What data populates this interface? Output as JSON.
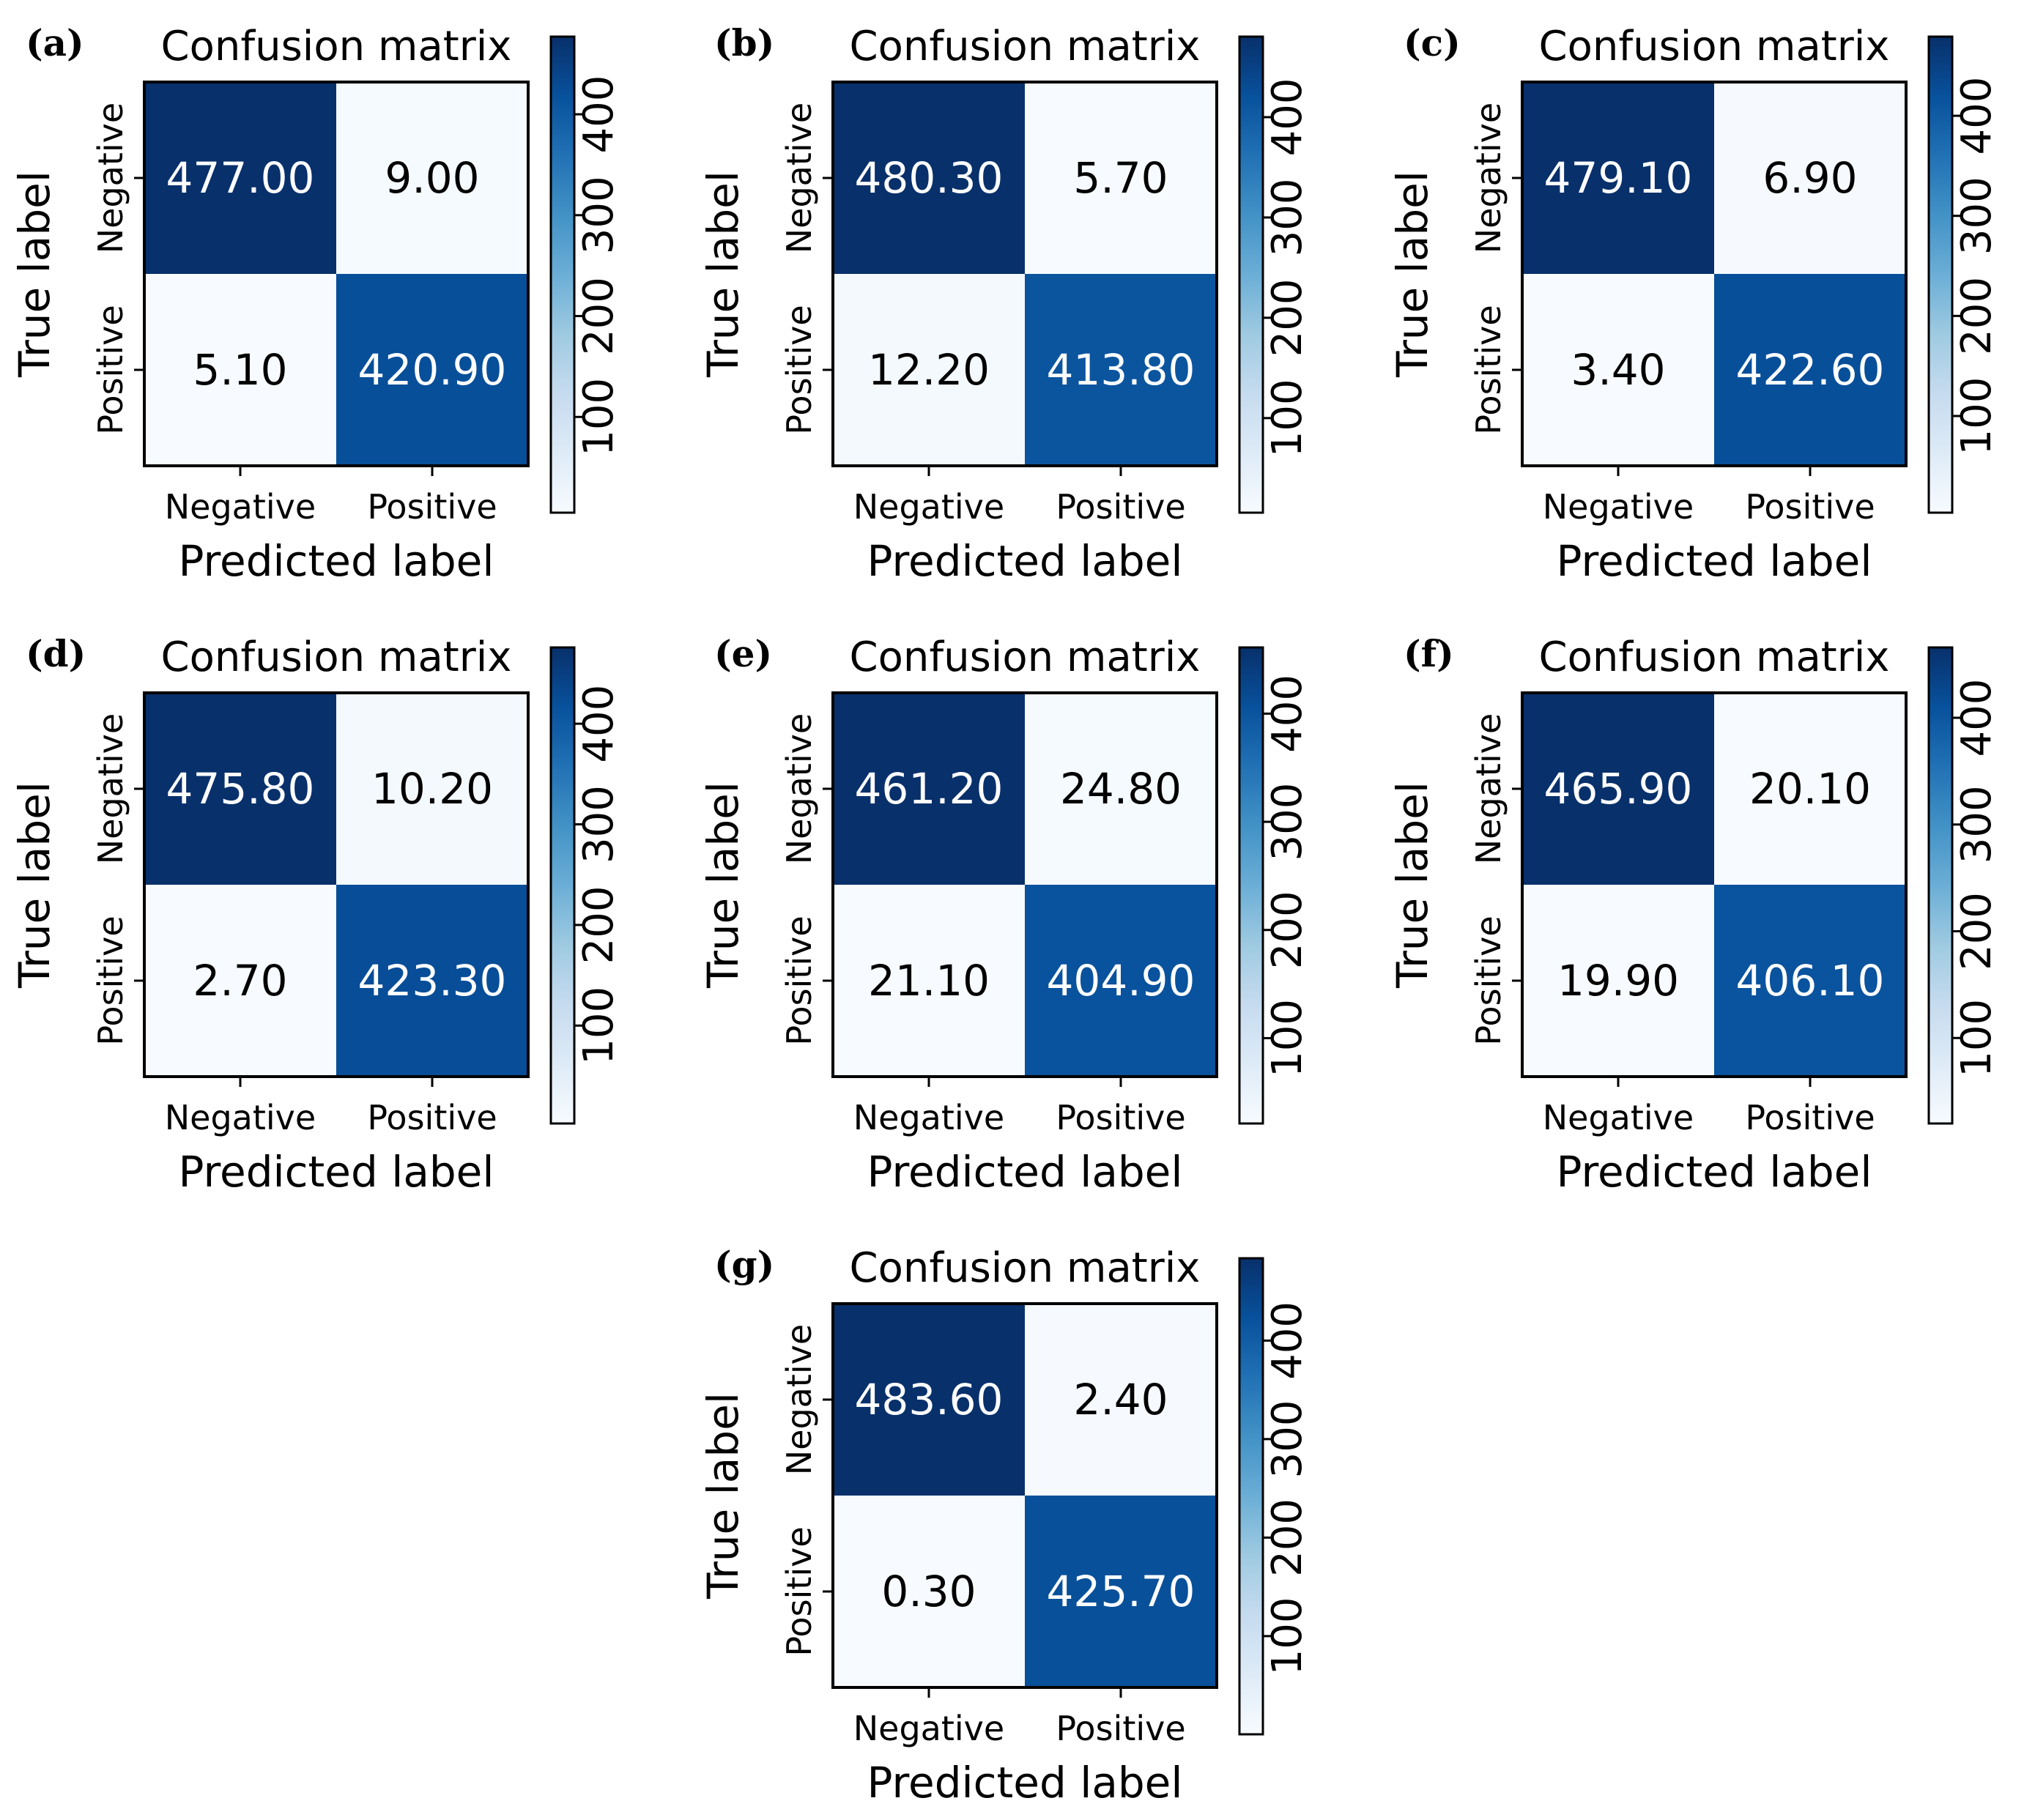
{
  "chart_data": [
    {
      "type": "heatmap",
      "panel_label": "(a)",
      "title": "Confusion matrix",
      "xlabel": "Predicted label",
      "ylabel": "True label",
      "x_categories": [
        "Negative",
        "Positive"
      ],
      "y_categories": [
        "Negative",
        "Positive"
      ],
      "values": [
        [
          477.0,
          9.0
        ],
        [
          5.1,
          420.9
        ]
      ],
      "value_labels": [
        [
          "477.00",
          "9.00"
        ],
        [
          "5.10",
          "420.90"
        ]
      ],
      "colorbar": {
        "range": [
          5.1,
          477.0
        ],
        "ticks": [
          100,
          200,
          300,
          400
        ],
        "tick_labels": [
          "100",
          "200",
          "300",
          "400"
        ],
        "colormap": "Blues"
      }
    },
    {
      "type": "heatmap",
      "panel_label": "(b)",
      "title": "Confusion matrix",
      "xlabel": "Predicted label",
      "ylabel": "True label",
      "x_categories": [
        "Negative",
        "Positive"
      ],
      "y_categories": [
        "Negative",
        "Positive"
      ],
      "values": [
        [
          480.3,
          5.7
        ],
        [
          12.2,
          413.8
        ]
      ],
      "value_labels": [
        [
          "480.30",
          "5.70"
        ],
        [
          "12.20",
          "413.80"
        ]
      ],
      "colorbar": {
        "range": [
          5.7,
          480.3
        ],
        "ticks": [
          100,
          200,
          300,
          400
        ],
        "tick_labels": [
          "100",
          "200",
          "300",
          "400"
        ],
        "colormap": "Blues"
      }
    },
    {
      "type": "heatmap",
      "panel_label": "(c)",
      "title": "Confusion matrix",
      "xlabel": "Predicted label",
      "ylabel": "True label",
      "x_categories": [
        "Negative",
        "Positive"
      ],
      "y_categories": [
        "Negative",
        "Positive"
      ],
      "values": [
        [
          479.1,
          6.9
        ],
        [
          3.4,
          422.6
        ]
      ],
      "value_labels": [
        [
          "479.10",
          "6.90"
        ],
        [
          "3.40",
          "422.60"
        ]
      ],
      "colorbar": {
        "range": [
          3.4,
          479.1
        ],
        "ticks": [
          100,
          200,
          300,
          400
        ],
        "tick_labels": [
          "100",
          "200",
          "300",
          "400"
        ],
        "colormap": "Blues"
      }
    },
    {
      "type": "heatmap",
      "panel_label": "(d)",
      "title": "Confusion matrix",
      "xlabel": "Predicted label",
      "ylabel": "True label",
      "x_categories": [
        "Negative",
        "Positive"
      ],
      "y_categories": [
        "Negative",
        "Positive"
      ],
      "values": [
        [
          475.8,
          10.2
        ],
        [
          2.7,
          423.3
        ]
      ],
      "value_labels": [
        [
          "475.80",
          "10.20"
        ],
        [
          "2.70",
          "423.30"
        ]
      ],
      "colorbar": {
        "range": [
          2.7,
          475.8
        ],
        "ticks": [
          100,
          200,
          300,
          400
        ],
        "tick_labels": [
          "100",
          "200",
          "300",
          "400"
        ],
        "colormap": "Blues"
      }
    },
    {
      "type": "heatmap",
      "panel_label": "(e)",
      "title": "Confusion matrix",
      "xlabel": "Predicted label",
      "ylabel": "True label",
      "x_categories": [
        "Negative",
        "Positive"
      ],
      "y_categories": [
        "Negative",
        "Positive"
      ],
      "values": [
        [
          461.2,
          24.8
        ],
        [
          21.1,
          404.9
        ]
      ],
      "value_labels": [
        [
          "461.20",
          "24.80"
        ],
        [
          "21.10",
          "404.90"
        ]
      ],
      "colorbar": {
        "range": [
          21.1,
          461.2
        ],
        "ticks": [
          100,
          200,
          300,
          400
        ],
        "tick_labels": [
          "100",
          "200",
          "300",
          "400"
        ],
        "colormap": "Blues"
      }
    },
    {
      "type": "heatmap",
      "panel_label": "(f)",
      "title": "Confusion matrix",
      "xlabel": "Predicted label",
      "ylabel": "True label",
      "x_categories": [
        "Negative",
        "Positive"
      ],
      "y_categories": [
        "Negative",
        "Positive"
      ],
      "values": [
        [
          465.9,
          20.1
        ],
        [
          19.9,
          406.1
        ]
      ],
      "value_labels": [
        [
          "465.90",
          "20.10"
        ],
        [
          "19.90",
          "406.10"
        ]
      ],
      "colorbar": {
        "range": [
          19.9,
          465.9
        ],
        "ticks": [
          100,
          200,
          300,
          400
        ],
        "tick_labels": [
          "100",
          "200",
          "300",
          "400"
        ],
        "colormap": "Blues"
      }
    },
    {
      "type": "heatmap",
      "panel_label": "(g)",
      "title": "Confusion matrix",
      "xlabel": "Predicted label",
      "ylabel": "True label",
      "x_categories": [
        "Negative",
        "Positive"
      ],
      "y_categories": [
        "Negative",
        "Positive"
      ],
      "values": [
        [
          483.6,
          2.4
        ],
        [
          0.3,
          425.7
        ]
      ],
      "value_labels": [
        [
          "483.60",
          "2.40"
        ],
        [
          "0.30",
          "425.70"
        ]
      ],
      "colorbar": {
        "range": [
          0.3,
          483.6
        ],
        "ticks": [
          100,
          200,
          300,
          400
        ],
        "tick_labels": [
          "100",
          "200",
          "300",
          "400"
        ],
        "colormap": "Blues"
      }
    }
  ]
}
